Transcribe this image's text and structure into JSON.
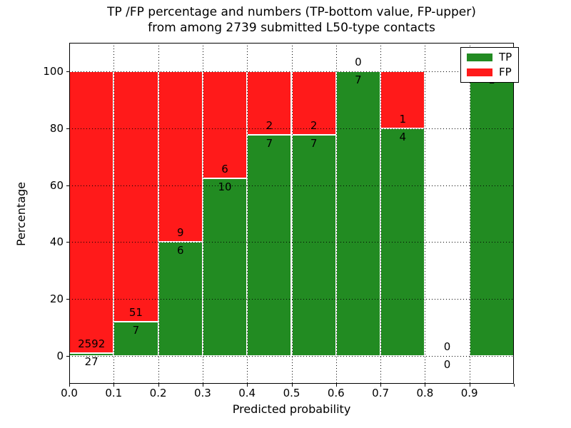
{
  "chart_data": {
    "type": "bar",
    "stacked": true,
    "orientation": "vertical",
    "title_line1": "TP /FP percentage and numbers (TP-bottom value, FP-upper)",
    "title_line2": "from among 2739 submitted L50-type contacts",
    "xlabel": "Predicted probability",
    "ylabel": "Percentage",
    "xlim": [
      0.0,
      1.0
    ],
    "ylim": [
      -10,
      110
    ],
    "grid": true,
    "grid_style": "dotted",
    "yticks": [
      0,
      20,
      40,
      60,
      80,
      100
    ],
    "xtick_labels": [
      "0.0",
      "0.1",
      "0.2",
      "0.3",
      "0.4",
      "0.5",
      "0.6",
      "0.7",
      "0.8",
      "0.9"
    ],
    "xtick_values": [
      0.0,
      0.1,
      0.2,
      0.3,
      0.4,
      0.5,
      0.6,
      0.7,
      0.8,
      0.9
    ],
    "colors": {
      "tp": "#228b22",
      "fp": "#ff1a1a",
      "bar_edge": "#ffffff",
      "grid": "#000000",
      "background": "#ffffff"
    },
    "legend": {
      "position": "upper right",
      "entries": [
        {
          "label": "TP",
          "color": "#228b22"
        },
        {
          "label": "FP",
          "color": "#ff1a1a"
        }
      ]
    },
    "bins": [
      {
        "range": [
          0.0,
          0.1
        ],
        "tp": 27,
        "fp": 2592,
        "tp_pct": 1.03,
        "has_bar": true
      },
      {
        "range": [
          0.1,
          0.2
        ],
        "tp": 7,
        "fp": 51,
        "tp_pct": 12.07,
        "has_bar": true
      },
      {
        "range": [
          0.2,
          0.3
        ],
        "tp": 6,
        "fp": 9,
        "tp_pct": 40.0,
        "has_bar": true
      },
      {
        "range": [
          0.3,
          0.4
        ],
        "tp": 10,
        "fp": 6,
        "tp_pct": 62.5,
        "has_bar": true
      },
      {
        "range": [
          0.4,
          0.5
        ],
        "tp": 7,
        "fp": 2,
        "tp_pct": 77.78,
        "has_bar": true
      },
      {
        "range": [
          0.5,
          0.6
        ],
        "tp": 7,
        "fp": 2,
        "tp_pct": 77.78,
        "has_bar": true
      },
      {
        "range": [
          0.6,
          0.7
        ],
        "tp": 7,
        "fp": 0,
        "tp_pct": 100.0,
        "has_bar": true
      },
      {
        "range": [
          0.7,
          0.8
        ],
        "tp": 4,
        "fp": 1,
        "tp_pct": 80.0,
        "has_bar": true
      },
      {
        "range": [
          0.8,
          0.9
        ],
        "tp": 0,
        "fp": 0,
        "tp_pct": 0.0,
        "has_bar": false
      },
      {
        "range": [
          0.9,
          1.0
        ],
        "tp": 1,
        "fp": 0,
        "tp_pct": 100.0,
        "has_bar": true,
        "fp_label_hidden": true
      }
    ]
  }
}
